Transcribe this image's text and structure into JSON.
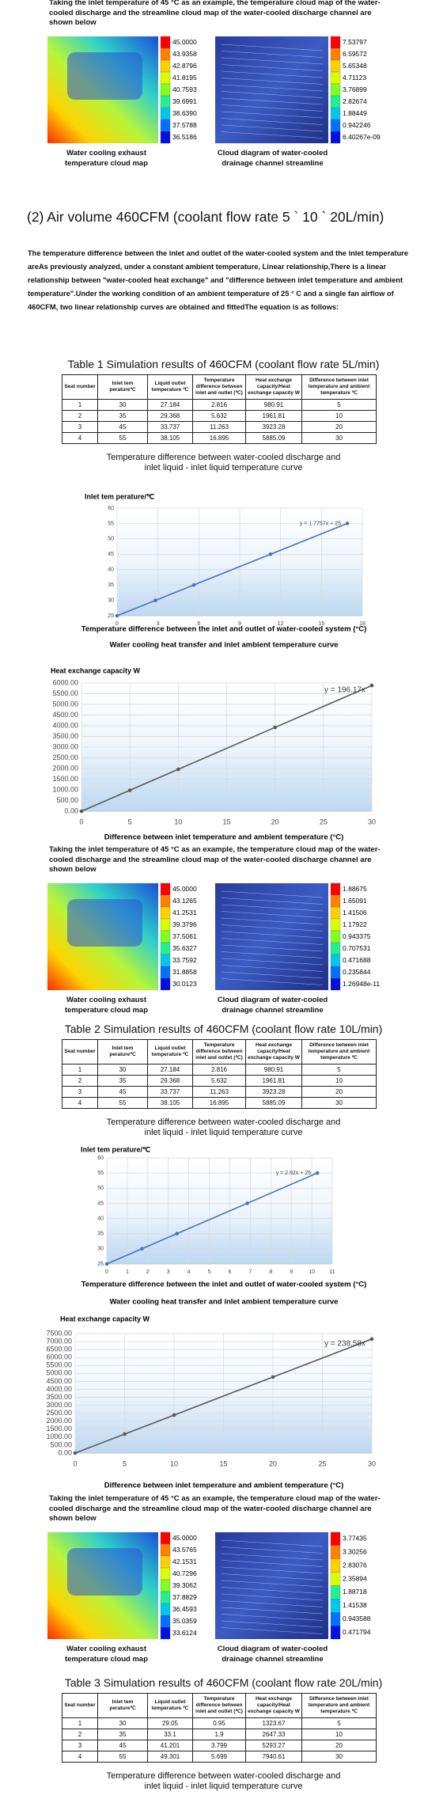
{
  "figures": [
    {
      "note": "Taking the inlet temperature of 45 °C as an example, the temperature cloud map of the water-cooled discharge and the streamline cloud map of the water-cooled discharge channel are shown below",
      "left_scale": [
        "45.0000",
        "43.9358",
        "42.8796",
        "41.8195",
        "40.7593",
        "39.6991",
        "38.6390",
        "37.5788",
        "36.5186"
      ],
      "right_scale": [
        "7.53797",
        "6.59572",
        "5.65348",
        "4.71123",
        "3.76899",
        "2.82674",
        "1.88449",
        "0.942246",
        "6.40267e-09"
      ],
      "left_caption": "Water cooling exhaust temperature cloud map",
      "right_caption": "Cloud diagram of water-cooled drainage channel streamline"
    },
    {
      "note": "Taking the inlet temperature of 45 °C as an example, the temperature cloud map of the water-cooled discharge and the streamline cloud map of the water-cooled discharge channel are shown below",
      "left_scale": [
        "45.0000",
        "43.1265",
        "41.2531",
        "39.3796",
        "37.5061",
        "35.6327",
        "33.7592",
        "31.8858",
        "30.0123"
      ],
      "right_scale": [
        "1.88675",
        "1.65091",
        "1.41506",
        "1.17922",
        "0.943375",
        "0.707531",
        "0.471688",
        "0.235844",
        "1.26948e-11"
      ],
      "left_caption": "Water cooling exhaust temperature cloud map",
      "right_caption": "Cloud diagram of water-cooled drainage channel streamline"
    },
    {
      "note": "Taking the inlet temperature of 45 °C as an example, the temperature cloud map of the water-cooled discharge and the streamline cloud map of the water-cooled discharge channel are shown below",
      "left_scale": [
        "45.0000",
        "43.5765",
        "42.1531",
        "40.7296",
        "39.3062",
        "37.8829",
        "36.4593",
        "35.0359",
        "33.6124"
      ],
      "right_scale": [
        "3.77435",
        "3.30256",
        "2.83076",
        "2.35894",
        "1.88718",
        "1.41538",
        "0.943588",
        "0.471794"
      ],
      "left_caption": "Water cooling exhaust temperature cloud map",
      "right_caption": "Cloud diagram of water-cooled drainage channel streamline"
    }
  ],
  "heading": "(2) Air volume 460CFM (coolant flow rate 5 ` 10 ` 20L/min)",
  "paragraph": "The temperature difference between the inlet and outlet of the water-cooled system and the inlet temperature areAs previously analyzed, under a constant ambient temperature, Linear relationship,There is a linear relationship between \"water-cooled heat exchange\" and \"difference between inlet temperature and ambient temperature\".Under the working condition of an ambient temperature of 25 ° C and a single fan airflow of 460CFM, two linear relationship curves are obtained and fittedThe equation is as follows:",
  "tables": [
    {
      "title": "Table 1 Simulation results of 460CFM (coolant flow rate 5L/min)",
      "header": [
        "Seat number",
        "Inlet tem perature℃",
        "Liquid outlet temperature ℃",
        "Temperature difference between inlet and outlet (℃)",
        "Heat exchange capacity/Heat exchange capacity W",
        "Difference between inlet temperature and ambient temperature ℃"
      ],
      "rows": [
        [
          1,
          30,
          27.184,
          2.816,
          980.91,
          5
        ],
        [
          2,
          35,
          29.368,
          5.632,
          1961.81,
          10
        ],
        [
          3,
          45,
          33.737,
          11.263,
          3923.28,
          20
        ],
        [
          4,
          55,
          38.105,
          16.895,
          5885.09,
          30
        ]
      ],
      "caption": "Temperature difference between water-cooled discharge and inlet liquid - inlet liquid temperature curve"
    },
    {
      "title": "Table 2 Simulation results of 460CFM (coolant flow rate 10L/min)",
      "header": [
        "Seat number",
        "Inlet tem perature℃",
        "Liquid outlet temperature ℃",
        "Temperature difference between inlet and outlet (℃)",
        "Heat exchange capacity/Heat exchange capacity W",
        "Difference between inlet temperature and ambient temperature ℃"
      ],
      "rows": [
        [
          1,
          30,
          27.184,
          2.816,
          980.91,
          5
        ],
        [
          2,
          35,
          29.368,
          5.632,
          1961.81,
          10
        ],
        [
          3,
          45,
          33.737,
          11.263,
          3923.28,
          20
        ],
        [
          4,
          55,
          38.105,
          16.895,
          5885.09,
          30
        ]
      ],
      "caption": "Temperature difference between water-cooled discharge and inlet liquid - inlet liquid temperature curve"
    },
    {
      "title": "Table 3 Simulation results of 460CFM (coolant flow rate 20L/min)",
      "header": [
        "Seat number",
        "Inlet tem perature℃",
        "Liquid outlet temperature ℃",
        "Temperature difference between inlet and outlet (℃)",
        "Heat exchange capacity/Heat exchange capacity W",
        "Difference between inlet temperature and ambient temperature ℃"
      ],
      "rows": [
        [
          1,
          30,
          29.05,
          0.95,
          1323.67,
          5
        ],
        [
          2,
          35,
          33.1,
          1.9,
          2647.33,
          10
        ],
        [
          3,
          45,
          41.201,
          3.799,
          5293.27,
          20
        ],
        [
          4,
          55,
          49.301,
          5.699,
          7940.61,
          30
        ]
      ],
      "caption": "Temperature difference between water-cooled discharge and inlet liquid - inlet liquid temperature curve"
    }
  ],
  "chart_data": [
    {
      "type": "line",
      "y_label": "Inlet tem perature/℃",
      "x_label": "Temperature difference between the inlet and outlet of water-cooled system (°C)",
      "annotation": "y = 1.7757x + 25",
      "x": [
        0,
        2.816,
        5.632,
        11.263,
        16.895
      ],
      "values": [
        25,
        30,
        35,
        45,
        55
      ],
      "color": "#4472c4",
      "xlim": [
        0,
        18
      ],
      "xticks": [
        0,
        3,
        6,
        9,
        12,
        15,
        18
      ],
      "ylim": [
        25,
        60
      ],
      "yticks": [
        25,
        30,
        35,
        40,
        45,
        50,
        55,
        60
      ],
      "grid": true
    },
    {
      "type": "line",
      "title": "Water cooling heat transfer and inlet ambient temperature curve",
      "y_label": "Heat exchange capacity W",
      "x_label": "Difference between inlet temperature and ambient temperature (°C)",
      "annotation": "y = 196.17x",
      "x": [
        0,
        5,
        10,
        20,
        30
      ],
      "values": [
        0,
        980.91,
        1961.81,
        3923.28,
        5885.09
      ],
      "color": "#595959",
      "xlim": [
        0,
        30
      ],
      "xticks": [
        0,
        5,
        10,
        15,
        20,
        25,
        30
      ],
      "ylim": [
        0,
        6000
      ],
      "yticks": [
        {
          "value": 0,
          "label": "0.00"
        },
        {
          "value": 500,
          "label": "500.00"
        },
        {
          "value": 1000,
          "label": "1000.00"
        },
        {
          "value": 1500,
          "label": "1500.00"
        },
        {
          "value": 2000,
          "label": "2000.00"
        },
        {
          "value": 2500,
          "label": "2500.00"
        },
        {
          "value": 3000,
          "label": "3000.00"
        },
        {
          "value": 3500,
          "label": "3500.00"
        },
        {
          "value": 4000,
          "label": "4000.00"
        },
        {
          "value": 4500,
          "label": "4500.00"
        },
        {
          "value": 5000,
          "label": "5000.00"
        },
        {
          "value": 5500,
          "label": "5500.00"
        },
        {
          "value": 6000,
          "label": "6000.00"
        }
      ],
      "grid": true
    },
    {
      "type": "line",
      "y_label": "Inlet tem perature/℃",
      "x_label": "Temperature difference between the inlet and outlet of water-cooled system (°C)",
      "annotation": "y = 2.92x + 25",
      "x": [
        0,
        1.71,
        3.42,
        6.85,
        10.27
      ],
      "values": [
        25,
        30,
        35,
        45,
        55
      ],
      "color": "#4472c4",
      "xlim": [
        0,
        11
      ],
      "xticks": [
        0,
        1,
        2,
        3,
        4,
        5,
        6,
        7,
        8,
        9,
        10,
        11
      ],
      "ylim": [
        25,
        60
      ],
      "yticks": [
        25,
        30,
        35,
        40,
        45,
        50,
        55,
        60
      ],
      "grid": true
    },
    {
      "type": "line",
      "title": "Water cooling heat transfer and inlet ambient temperature curve",
      "y_label": "Heat exchange capacity W",
      "x_label": "Difference between inlet temperature and ambient temperature (°C)",
      "annotation": "y = 238.58x",
      "x": [
        0,
        5,
        10,
        20,
        30
      ],
      "values": [
        0,
        1192.9,
        2385.8,
        4771.6,
        7157.4
      ],
      "color": "#595959",
      "xlim": [
        0,
        30
      ],
      "xticks": [
        0,
        5,
        10,
        15,
        20,
        25,
        30
      ],
      "ylim": [
        0,
        7500
      ],
      "yticks": [
        {
          "value": 0,
          "label": "0.00"
        },
        {
          "value": 500,
          "label": "500.00"
        },
        {
          "value": 1000,
          "label": "1000.00"
        },
        {
          "value": 1500,
          "label": "1500.00"
        },
        {
          "value": 2000,
          "label": "2000.00"
        },
        {
          "value": 2500,
          "label": "2500.00"
        },
        {
          "value": 3000,
          "label": "3000.00"
        },
        {
          "value": 3500,
          "label": "3500.00"
        },
        {
          "value": 4000,
          "label": "4000.00"
        },
        {
          "value": 4500,
          "label": "4500.00"
        },
        {
          "value": 5000,
          "label": "5000.00"
        },
        {
          "value": 5500,
          "label": "5500.00"
        },
        {
          "value": 6000,
          "label": "6000.00"
        },
        {
          "value": 6500,
          "label": "6500.00"
        },
        {
          "value": 7000,
          "label": "7000.00"
        },
        {
          "value": 7500,
          "label": "7500.00"
        }
      ],
      "grid": true
    }
  ]
}
